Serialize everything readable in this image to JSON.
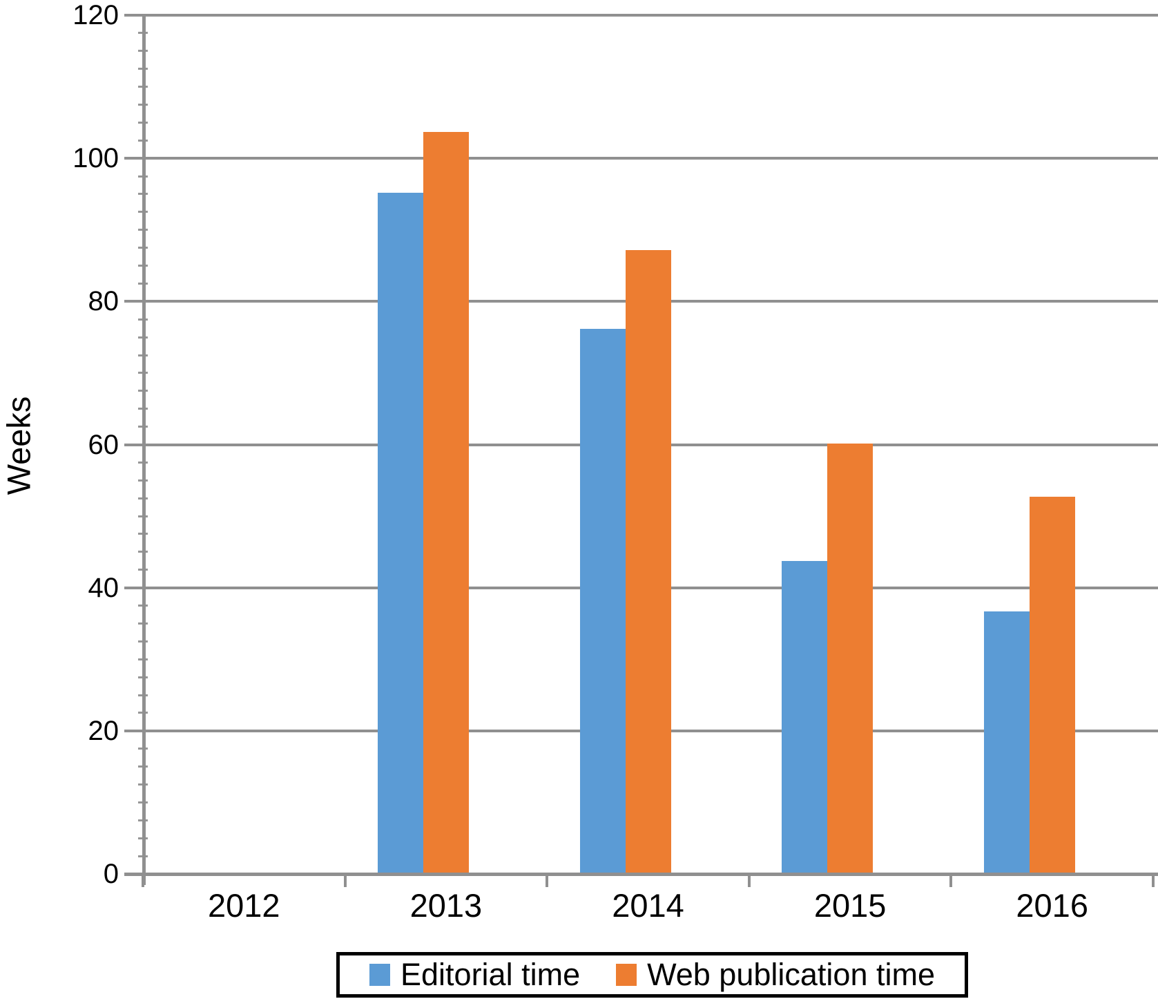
{
  "chart_data": {
    "type": "bar",
    "title": "",
    "xlabel": "",
    "ylabel": "Weeks",
    "categories": [
      "2012",
      "2013",
      "2014",
      "2015",
      "2016"
    ],
    "series": [
      {
        "name": "Editorial time",
        "color": "#5B9BD5",
        "values": [
          0,
          95,
          76,
          43.5,
          36.5
        ]
      },
      {
        "name": "Web publication time",
        "color": "#ED7D31",
        "values": [
          0,
          103.5,
          87,
          60,
          52.5
        ]
      }
    ],
    "ylim": [
      0,
      120
    ],
    "yticks": [
      0,
      20,
      40,
      60,
      80,
      100,
      120
    ],
    "y_minor_interval": 2.5,
    "grid": "horizontal",
    "legend_position": "bottom",
    "units": "Weeks"
  },
  "colors": {
    "editorial": "#5B9BD5",
    "web_publication": "#ED7D31",
    "gridline": "#909090",
    "axis": "#909090",
    "text": "#000000",
    "background": "#ffffff"
  }
}
